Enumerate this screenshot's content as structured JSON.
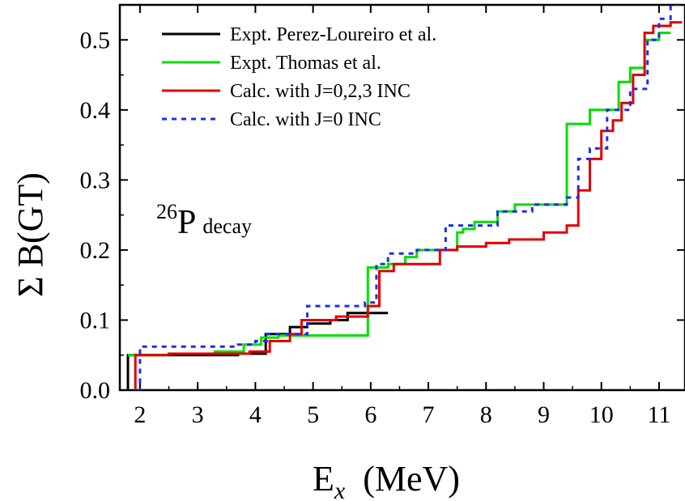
{
  "chart_data": {
    "type": "line",
    "step": true,
    "xlabel": {
      "main": "E",
      "sub": "x",
      "unit": "(MeV)"
    },
    "ylabel": "Σ B(GT)",
    "xlim": [
      1.65,
      11.45
    ],
    "ylim": [
      0.0,
      0.55
    ],
    "xticks": [
      2,
      3,
      4,
      5,
      6,
      7,
      8,
      9,
      10,
      11
    ],
    "yticks": [
      0.0,
      0.1,
      0.2,
      0.3,
      0.4,
      0.5
    ],
    "ytick_labels": [
      "0.0",
      "0.1",
      "0.2",
      "0.3",
      "0.4",
      "0.5"
    ],
    "grid": false,
    "legend_position": "top-left",
    "annotation": {
      "sup": "26",
      "main": "P",
      "rest": "decay"
    },
    "series": [
      {
        "name": "Expt. Perez-Loureiro et al.",
        "color": "#000000",
        "dash": "solid",
        "x": [
          1.79,
          1.79,
          2.5,
          3.7,
          4.18,
          4.6,
          4.9,
          5.3,
          5.6,
          6.1
        ],
        "y": [
          0.0,
          0.05,
          0.05,
          0.052,
          0.08,
          0.09,
          0.095,
          0.1,
          0.11,
          0.11
        ]
      },
      {
        "name": "Expt. Thomas et al.",
        "color": "#00e000",
        "dash": "solid",
        "x": [
          1.79,
          2.5,
          3.3,
          3.8,
          4.1,
          4.4,
          5.95,
          6.3,
          6.6,
          6.8,
          7.5,
          7.6,
          7.8,
          8.2,
          8.5,
          9.4,
          9.8,
          10.3,
          10.5,
          10.75,
          11.0
        ],
        "y": [
          0.05,
          0.052,
          0.055,
          0.065,
          0.075,
          0.078,
          0.175,
          0.18,
          0.19,
          0.2,
          0.225,
          0.23,
          0.24,
          0.255,
          0.265,
          0.38,
          0.4,
          0.44,
          0.46,
          0.5,
          0.51
        ]
      },
      {
        "name": "Calc. with J=0,2,3 INC",
        "color": "#e00000",
        "dash": "solid",
        "x": [
          1.92,
          1.92,
          2.5,
          3.9,
          4.25,
          4.6,
          4.8,
          5.4,
          5.95,
          6.15,
          6.4,
          7.2,
          7.5,
          8.0,
          8.4,
          9.0,
          9.4,
          9.6,
          9.8,
          10.0,
          10.2,
          10.35,
          10.55,
          10.75,
          10.9,
          11.2
        ],
        "y": [
          0.0,
          0.05,
          0.052,
          0.055,
          0.07,
          0.08,
          0.1,
          0.105,
          0.12,
          0.17,
          0.18,
          0.2,
          0.205,
          0.21,
          0.215,
          0.225,
          0.235,
          0.285,
          0.33,
          0.37,
          0.385,
          0.41,
          0.45,
          0.51,
          0.52,
          0.525
        ]
      },
      {
        "name": "Calc. with J=0 INC",
        "color": "#1f2ee8",
        "dash": "dashed",
        "x": [
          1.95,
          2.0,
          3.7,
          4.0,
          4.2,
          4.9,
          5.9,
          6.1,
          6.3,
          6.8,
          7.3,
          8.2,
          8.8,
          9.4,
          9.6,
          9.8,
          10.1,
          10.5,
          10.8,
          11.0,
          11.2
        ],
        "y": [
          0.0,
          0.062,
          0.065,
          0.07,
          0.08,
          0.12,
          0.125,
          0.18,
          0.195,
          0.2,
          0.235,
          0.255,
          0.265,
          0.275,
          0.33,
          0.345,
          0.4,
          0.43,
          0.5,
          0.53,
          0.55
        ]
      }
    ]
  }
}
